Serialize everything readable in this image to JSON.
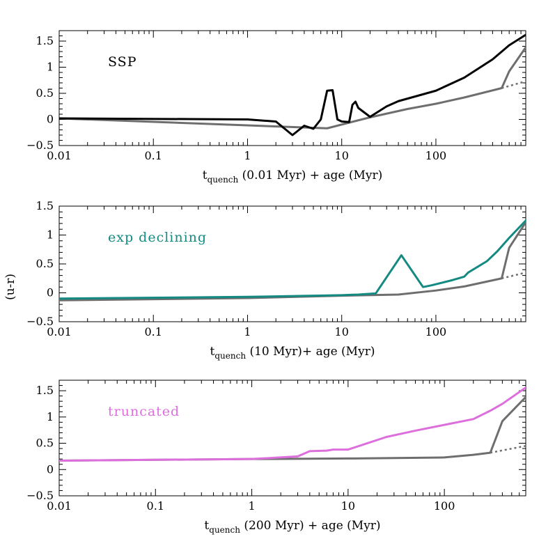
{
  "figure": {
    "ylabel": "(u-r)"
  },
  "chart_data": [
    {
      "type": "line",
      "annotation": "SSP",
      "annotation_color": "#000000",
      "xlabel_main": "t",
      "xlabel_sub": "quench",
      "xlabel_rest": " (0.01 Myr) + age (Myr)",
      "xscale": "log",
      "xlim": [
        0.01,
        900
      ],
      "ylim": [
        -0.5,
        1.7
      ],
      "xticks": [
        0.01,
        0.1,
        1,
        10,
        100
      ],
      "xtick_labels": [
        "0.01",
        "0.1",
        "1",
        "10",
        "100"
      ],
      "yticks": [
        -0.5,
        0,
        0.5,
        1,
        1.5
      ],
      "ytick_labels": [
        "−0.5",
        "0",
        "0.5",
        "1",
        "1.5"
      ],
      "series": [
        {
          "color": "#000000",
          "style": "solid",
          "x": [
            0.01,
            1,
            2,
            3,
            4,
            5,
            6,
            7,
            8,
            9,
            10,
            12,
            13,
            14,
            15,
            20,
            30,
            40,
            100,
            200,
            400,
            600,
            900
          ],
          "y": [
            0.02,
            0.0,
            -0.04,
            -0.3,
            -0.12,
            -0.18,
            0.0,
            0.55,
            0.56,
            0.0,
            -0.04,
            -0.05,
            0.28,
            0.34,
            0.22,
            0.05,
            0.25,
            0.35,
            0.55,
            0.8,
            1.15,
            1.42,
            1.62
          ]
        },
        {
          "color": "#6e6e6e",
          "style": "solid",
          "x": [
            0.01,
            7,
            20,
            50,
            100,
            200,
            500,
            600,
            900
          ],
          "y": [
            0.02,
            -0.17,
            0.04,
            0.2,
            0.3,
            0.42,
            0.6,
            0.92,
            1.38
          ]
        },
        {
          "color": "#6e6e6e",
          "style": "dotted",
          "x": [
            500,
            900
          ],
          "y": [
            0.6,
            0.73
          ]
        }
      ]
    },
    {
      "type": "line",
      "annotation": "exp declining",
      "annotation_color": "#138a82",
      "xlabel_main": "t",
      "xlabel_sub": "quench",
      "xlabel_rest": " (10 Myr)+ age (Myr)",
      "xscale": "log",
      "xlim": [
        0.01,
        900
      ],
      "ylim": [
        -0.5,
        1.5
      ],
      "xticks": [
        0.01,
        0.1,
        1,
        10,
        100
      ],
      "xtick_labels": [
        "0.01",
        "0.1",
        "1",
        "10",
        "100"
      ],
      "yticks": [
        -0.5,
        0,
        0.5,
        1,
        1.5
      ],
      "ytick_labels": [
        "−0.5",
        "0",
        "0.5",
        "1",
        "1.5"
      ],
      "series": [
        {
          "color": "#138a82",
          "style": "solid",
          "x": [
            0.01,
            1,
            10,
            15,
            23,
            43,
            73,
            90,
            150,
            200,
            220,
            350,
            450,
            600,
            900
          ],
          "y": [
            -0.1,
            -0.07,
            -0.04,
            -0.03,
            -0.01,
            0.65,
            0.1,
            0.13,
            0.22,
            0.28,
            0.35,
            0.55,
            0.72,
            0.95,
            1.25
          ]
        },
        {
          "color": "#6e6e6e",
          "style": "solid",
          "x": [
            0.01,
            1,
            10,
            40,
            100,
            200,
            500,
            600,
            900
          ],
          "y": [
            -0.13,
            -0.09,
            -0.05,
            -0.03,
            0.04,
            0.11,
            0.25,
            0.78,
            1.22
          ]
        },
        {
          "color": "#6e6e6e",
          "style": "dotted",
          "x": [
            500,
            900
          ],
          "y": [
            0.25,
            0.35
          ]
        }
      ]
    },
    {
      "type": "line",
      "annotation": "truncated",
      "annotation_color": "#dd6fdd",
      "xlabel_main": "t",
      "xlabel_sub": "quench",
      "xlabel_rest": " (200 Myr) + age (Myr)",
      "xscale": "log",
      "xlim": [
        0.01,
        700
      ],
      "ylim": [
        -0.5,
        1.7
      ],
      "xticks": [
        0.01,
        0.1,
        1,
        10,
        100
      ],
      "xtick_labels": [
        "0.01",
        "0.1",
        "1",
        "10",
        "100"
      ],
      "yticks": [
        -0.5,
        0,
        0.5,
        1,
        1.5
      ],
      "ytick_labels": [
        "−0.5",
        "0",
        "0.5",
        "1",
        "1.5"
      ],
      "series": [
        {
          "color": "#dd6fdd",
          "style": "solid",
          "x": [
            0.01,
            1,
            3,
            4,
            6,
            7,
            8,
            10,
            25,
            50,
            100,
            200,
            300,
            400,
            700
          ],
          "y": [
            0.17,
            0.2,
            0.25,
            0.35,
            0.36,
            0.38,
            0.38,
            0.38,
            0.62,
            0.74,
            0.85,
            0.96,
            1.12,
            1.25,
            1.56
          ]
        },
        {
          "color": "#6e6e6e",
          "style": "solid",
          "x": [
            0.01,
            1,
            10,
            100,
            200,
            300,
            400,
            700
          ],
          "y": [
            0.17,
            0.2,
            0.21,
            0.23,
            0.28,
            0.32,
            0.92,
            1.38
          ]
        },
        {
          "color": "#6e6e6e",
          "style": "dotted",
          "x": [
            300,
            700
          ],
          "y": [
            0.32,
            0.45
          ]
        }
      ]
    }
  ]
}
